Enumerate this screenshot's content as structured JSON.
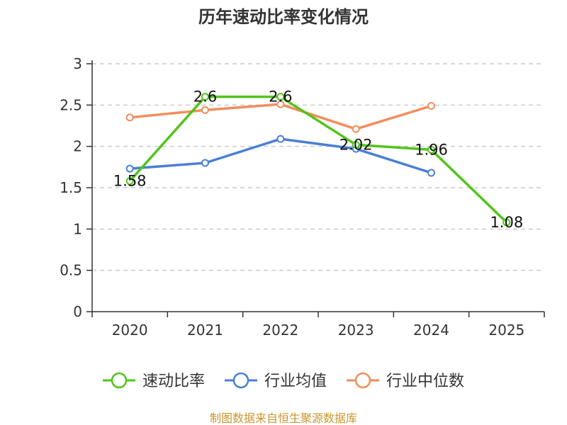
{
  "chart_data": {
    "type": "line",
    "title": "历年速动比率变化情况",
    "categories": [
      "2020",
      "2021",
      "2022",
      "2023",
      "2024",
      "2025"
    ],
    "y_ticks": [
      "0",
      "0.5",
      "1",
      "1.5",
      "2",
      "2.5",
      "3"
    ],
    "ylim": [
      0,
      3
    ],
    "grid": true,
    "legend_position": "bottom",
    "series": [
      {
        "name": "速动比率",
        "color": "#52c41a",
        "values": [
          1.58,
          2.6,
          2.6,
          2.02,
          1.96,
          1.08
        ],
        "labels": [
          "1.58",
          "2.6",
          "2.6",
          "2.02",
          "1.96",
          "1.08"
        ],
        "show_labels": true
      },
      {
        "name": "行业均值",
        "color": "#4a7fd6",
        "values": [
          1.73,
          1.8,
          2.09,
          1.97,
          1.68,
          null
        ],
        "show_labels": false
      },
      {
        "name": "行业中位数",
        "color": "#f28e5c",
        "values": [
          2.35,
          2.44,
          2.51,
          2.21,
          2.49,
          null
        ],
        "show_labels": false
      }
    ],
    "source": "制图数据来自恒生聚源数据库",
    "source_color": "#c8962d"
  }
}
